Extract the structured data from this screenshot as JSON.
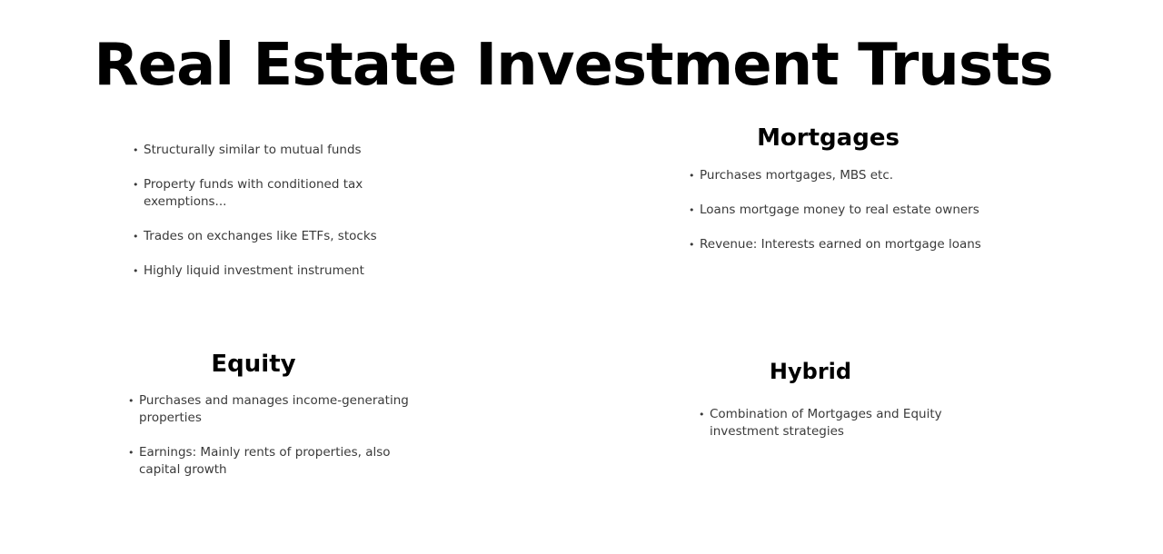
{
  "title": "Real Estate Investment Trusts",
  "intro": {
    "items": [
      "Structurally similar to mutual funds",
      "Property funds with conditioned tax exemptions...",
      "Trades on exchanges like ETFs, stocks",
      "Highly liquid investment instrument"
    ]
  },
  "mortgages": {
    "heading": "Mortgages",
    "items": [
      "Purchases mortgages, MBS etc.",
      "Loans mortgage money to real estate owners",
      "Revenue: Interests earned on mortgage loans"
    ]
  },
  "equity": {
    "heading": "Equity",
    "items": [
      "Purchases and manages income-generating properties",
      "Earnings: Mainly rents of properties, also capital growth"
    ]
  },
  "hybrid": {
    "heading": "Hybrid",
    "items": [
      "Combination of Mortgages and Equity investment strategies"
    ]
  }
}
